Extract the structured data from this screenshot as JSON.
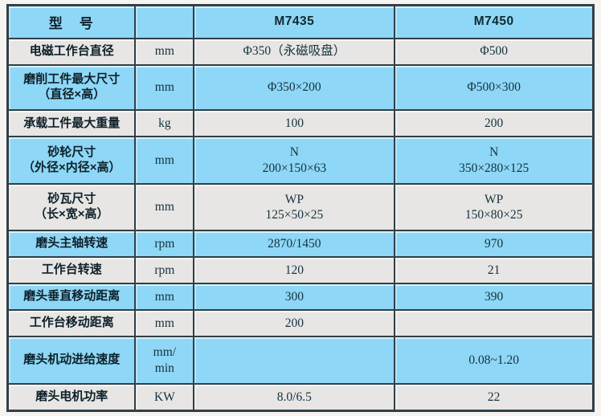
{
  "doc_type": "machine-specification-table",
  "colors": {
    "row_blue": "#8ed7f6",
    "row_gray": "#e7e6e4",
    "border": "#313f48",
    "text": "#142e3c"
  },
  "table": {
    "header": {
      "model_label": "型　号",
      "unit_label": "",
      "model_a": "M7435",
      "model_b": "M7450"
    },
    "rows": [
      {
        "label1": "电磁工作台直径",
        "label2": "",
        "unit1": "mm",
        "unit2": "",
        "a1": "Φ350（永磁吸盘）",
        "a2": "",
        "b1": "Φ500",
        "b2": ""
      },
      {
        "label1": "磨削工件最大尺寸",
        "label2": "（直径×高）",
        "unit1": "mm",
        "unit2": "",
        "a1": "Φ350×200",
        "a2": "",
        "b1": "Φ500×300",
        "b2": ""
      },
      {
        "label1": "承载工件最大重量",
        "label2": "",
        "unit1": "kg",
        "unit2": "",
        "a1": "100",
        "a2": "",
        "b1": "200",
        "b2": ""
      },
      {
        "label1": "砂轮尺寸",
        "label2": "（外径×内径×高）",
        "unit1": "mm",
        "unit2": "",
        "a1": "N",
        "a2": "200×150×63",
        "b1": "N",
        "b2": "350×280×125"
      },
      {
        "label1": "砂瓦尺寸",
        "label2": "（长×宽×高）",
        "unit1": "mm",
        "unit2": "",
        "a1": "WP",
        "a2": "125×50×25",
        "b1": "WP",
        "b2": "150×80×25"
      },
      {
        "label1": "磨头主轴转速",
        "label2": "",
        "unit1": "rpm",
        "unit2": "",
        "a1": "2870/1450",
        "a2": "",
        "b1": "970",
        "b2": ""
      },
      {
        "label1": "工作台转速",
        "label2": "",
        "unit1": "rpm",
        "unit2": "",
        "a1": "120",
        "a2": "",
        "b1": "21",
        "b2": ""
      },
      {
        "label1": "磨头垂直移动距离",
        "label2": "",
        "unit1": "mm",
        "unit2": "",
        "a1": "300",
        "a2": "",
        "b1": "390",
        "b2": ""
      },
      {
        "label1": "工作台移动距离",
        "label2": "",
        "unit1": "mm",
        "unit2": "",
        "a1": "200",
        "a2": "",
        "b1": "",
        "b2": ""
      },
      {
        "label1": "磨头机动进给速度",
        "label2": "",
        "unit1": "mm/",
        "unit2": "min",
        "a1": "",
        "a2": "",
        "b1": "0.08~1.20",
        "b2": ""
      },
      {
        "label1": "磨头电机功率",
        "label2": "",
        "unit1": "KW",
        "unit2": "",
        "a1": "8.0/6.5",
        "a2": "",
        "b1": "22",
        "b2": ""
      }
    ]
  }
}
